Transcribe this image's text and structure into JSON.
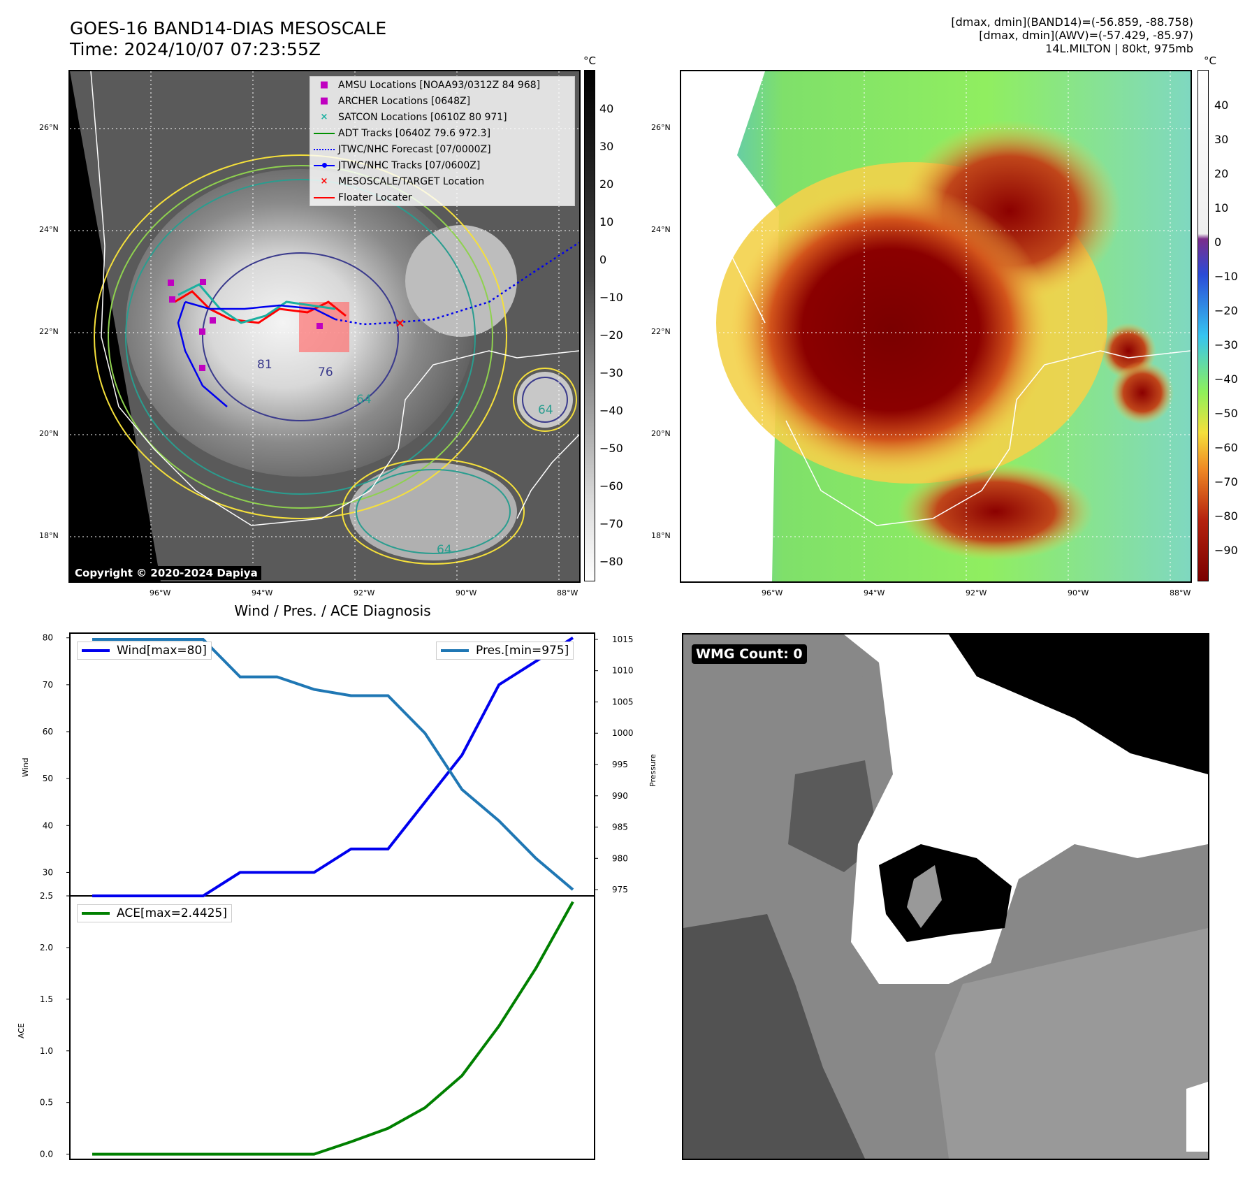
{
  "header": {
    "title_line1": "GOES-16 BAND14-DIAS MESOSCALE",
    "title_line2": "Time: 2024/10/07 07:23:55Z",
    "right_line1": "[dmax, dmin](BAND14)=(-56.859, -88.758)",
    "right_line2": "[dmax, dmin](AWV)=(-57.429, -85.97)",
    "right_line3": "14L.MILTON | 80kt, 975mb"
  },
  "map": {
    "lat_labels": [
      "26°N",
      "24°N",
      "22°N",
      "20°N",
      "18°N"
    ],
    "lon_labels": [
      "96°W",
      "94°W",
      "92°W",
      "90°W",
      "88°W"
    ],
    "copyright": "Copyright © 2020-2024 Dapiya",
    "contour_labels": [
      "81",
      "76",
      "64",
      "64",
      "64"
    ],
    "legend": [
      {
        "label": "AMSU Locations [NOAA93/0312Z 84 968]",
        "symbol": "■",
        "color": "#c000c0"
      },
      {
        "label": "ARCHER Locations [0648Z]",
        "symbol": "■",
        "color": "#c000c0"
      },
      {
        "label": "SATCON Locations [0610Z 80 971]",
        "symbol": "×",
        "color": "#1ab0a0"
      },
      {
        "label": "ADT Tracks [0640Z 79.6 972.3]",
        "symbol": "line",
        "color": "#009000"
      },
      {
        "label": "JTWC/NHC Forecast [07/0000Z]",
        "symbol": "dotted",
        "color": "#0000ff"
      },
      {
        "label": "JTWC/NHC Tracks [07/0600Z]",
        "symbol": "dotline",
        "color": "#0000ff"
      },
      {
        "label": "MESOSCALE/TARGET Location",
        "symbol": "×",
        "color": "#ff0000"
      },
      {
        "label": "Floater Locater",
        "symbol": "line",
        "color": "#ff0000"
      }
    ]
  },
  "colorbar_left": {
    "unit": "°C",
    "ticks": [
      "40",
      "30",
      "20",
      "10",
      "0",
      "−10",
      "−20",
      "−30",
      "−40",
      "−50",
      "−60",
      "−70",
      "−80"
    ]
  },
  "colorbar_right": {
    "unit": "°C",
    "ticks": [
      "40",
      "30",
      "20",
      "10",
      "0",
      "−10",
      "−20",
      "−30",
      "−40",
      "−50",
      "−60",
      "−70",
      "−80",
      "−90"
    ]
  },
  "wmg": {
    "label": "WMG Count: 0"
  },
  "chart_data": [
    {
      "type": "line",
      "title": "Wind / Pres. / ACE Diagnosis",
      "ylabel": "Wind",
      "y2label": "Pressure",
      "ylim": [
        25,
        81
      ],
      "y2lim": [
        974,
        1016
      ],
      "yticks": [
        30,
        40,
        50,
        60,
        70,
        80
      ],
      "y2ticks": [
        975,
        980,
        985,
        990,
        995,
        1000,
        1005,
        1010,
        1015
      ],
      "x": [
        0,
        1,
        2,
        3,
        4,
        5,
        6,
        7,
        8,
        9,
        10,
        11,
        12,
        13
      ],
      "series": [
        {
          "name": "Wind[max=80]",
          "axis": "left",
          "color": "#0000ee",
          "values": [
            25,
            25,
            25,
            25,
            30,
            30,
            30,
            35,
            35,
            45,
            55,
            70,
            75,
            80
          ]
        },
        {
          "name": "Pres.[min=975]",
          "axis": "right",
          "color": "#1f77b4",
          "values": [
            1015,
            1015,
            1015,
            1015,
            1009,
            1009,
            1007,
            1006,
            1006,
            1000,
            991,
            986,
            980,
            975
          ]
        }
      ]
    },
    {
      "type": "line",
      "ylabel": "ACE",
      "ylim": [
        -0.05,
        2.5
      ],
      "yticks": [
        "0.0",
        "0.5",
        "1.0",
        "1.5",
        "2.0",
        "2.5"
      ],
      "x": [
        0,
        1,
        2,
        3,
        4,
        5,
        6,
        7,
        8,
        9,
        10,
        11,
        12,
        13
      ],
      "series": [
        {
          "name": "ACE[max=2.4425]",
          "color": "#008000",
          "values": [
            0,
            0,
            0,
            0,
            0,
            0,
            0,
            0.12,
            0.25,
            0.45,
            0.76,
            1.24,
            1.8,
            2.4425
          ]
        }
      ]
    }
  ]
}
